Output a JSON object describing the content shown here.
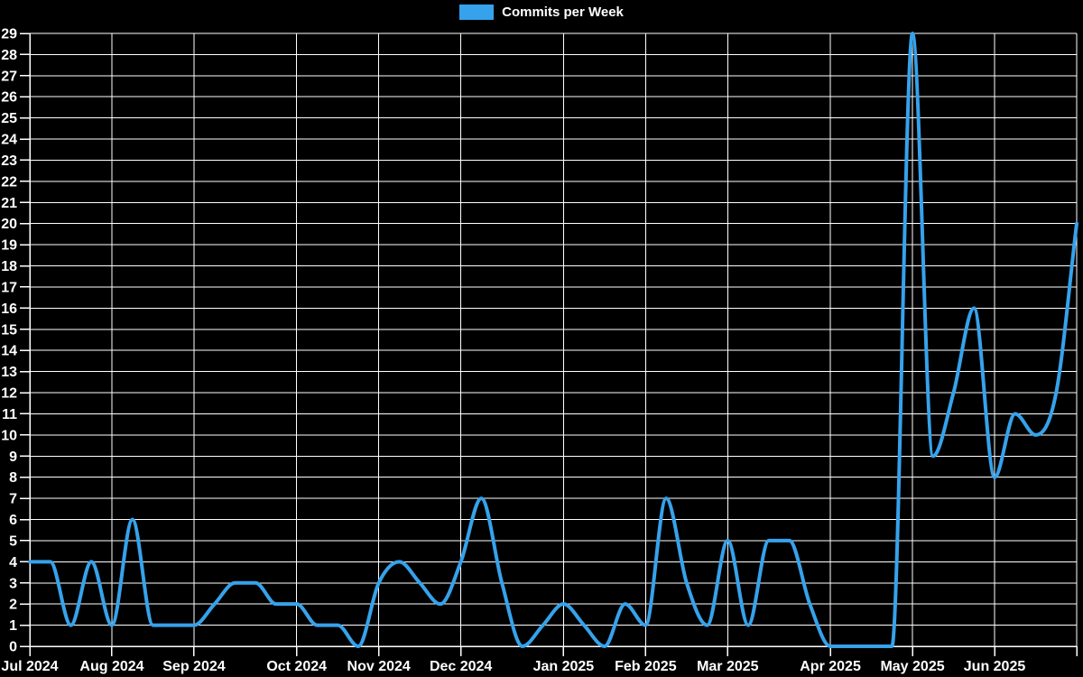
{
  "colors": {
    "background": "#000000",
    "line": "#36a2eb",
    "grid": "#ffffff",
    "axis": "#ffffff",
    "text": "#ffffff"
  },
  "chart_data": {
    "type": "line",
    "title": "",
    "xlabel": "",
    "ylabel": "",
    "legend_position": "top-center",
    "grid": "on",
    "smoothing": "monotone-spline",
    "x_unit": "week",
    "ylim": [
      0,
      29
    ],
    "y_tick_step": 1,
    "y_tick_labels": [
      "0",
      "1",
      "2",
      "3",
      "4",
      "5",
      "6",
      "7",
      "8",
      "9",
      "10",
      "11",
      "12",
      "13",
      "14",
      "15",
      "16",
      "17",
      "18",
      "19",
      "20",
      "21",
      "22",
      "23",
      "24",
      "25",
      "26",
      "27",
      "28",
      "29"
    ],
    "series": [
      {
        "name": "Commits per Week",
        "color": "#36a2eb",
        "values": [
          4,
          4,
          1,
          4,
          1,
          6,
          1,
          1,
          1,
          2,
          3,
          3,
          2,
          2,
          1,
          1,
          0,
          3,
          4,
          3,
          2,
          4,
          7,
          3,
          0,
          1,
          2,
          1,
          0,
          2,
          1,
          7,
          3,
          1,
          5,
          1,
          5,
          5,
          2,
          0,
          0,
          0,
          0,
          29,
          9,
          12,
          16,
          8,
          11,
          10,
          12,
          20
        ]
      }
    ],
    "x_ticks": [
      {
        "label": "Jul 2024",
        "week": 0
      },
      {
        "label": "Aug 2024",
        "week": 4
      },
      {
        "label": "Sep 2024",
        "week": 8
      },
      {
        "label": "Oct 2024",
        "week": 13
      },
      {
        "label": "Nov 2024",
        "week": 17
      },
      {
        "label": "Dec 2024",
        "week": 21
      },
      {
        "label": "Jan 2025",
        "week": 26
      },
      {
        "label": "Feb 2025",
        "week": 30
      },
      {
        "label": "Mar 2025",
        "week": 34
      },
      {
        "label": "Apr 2025",
        "week": 39
      },
      {
        "label": "May 2025",
        "week": 43
      },
      {
        "label": "Jun 2025",
        "week": 47
      }
    ]
  }
}
